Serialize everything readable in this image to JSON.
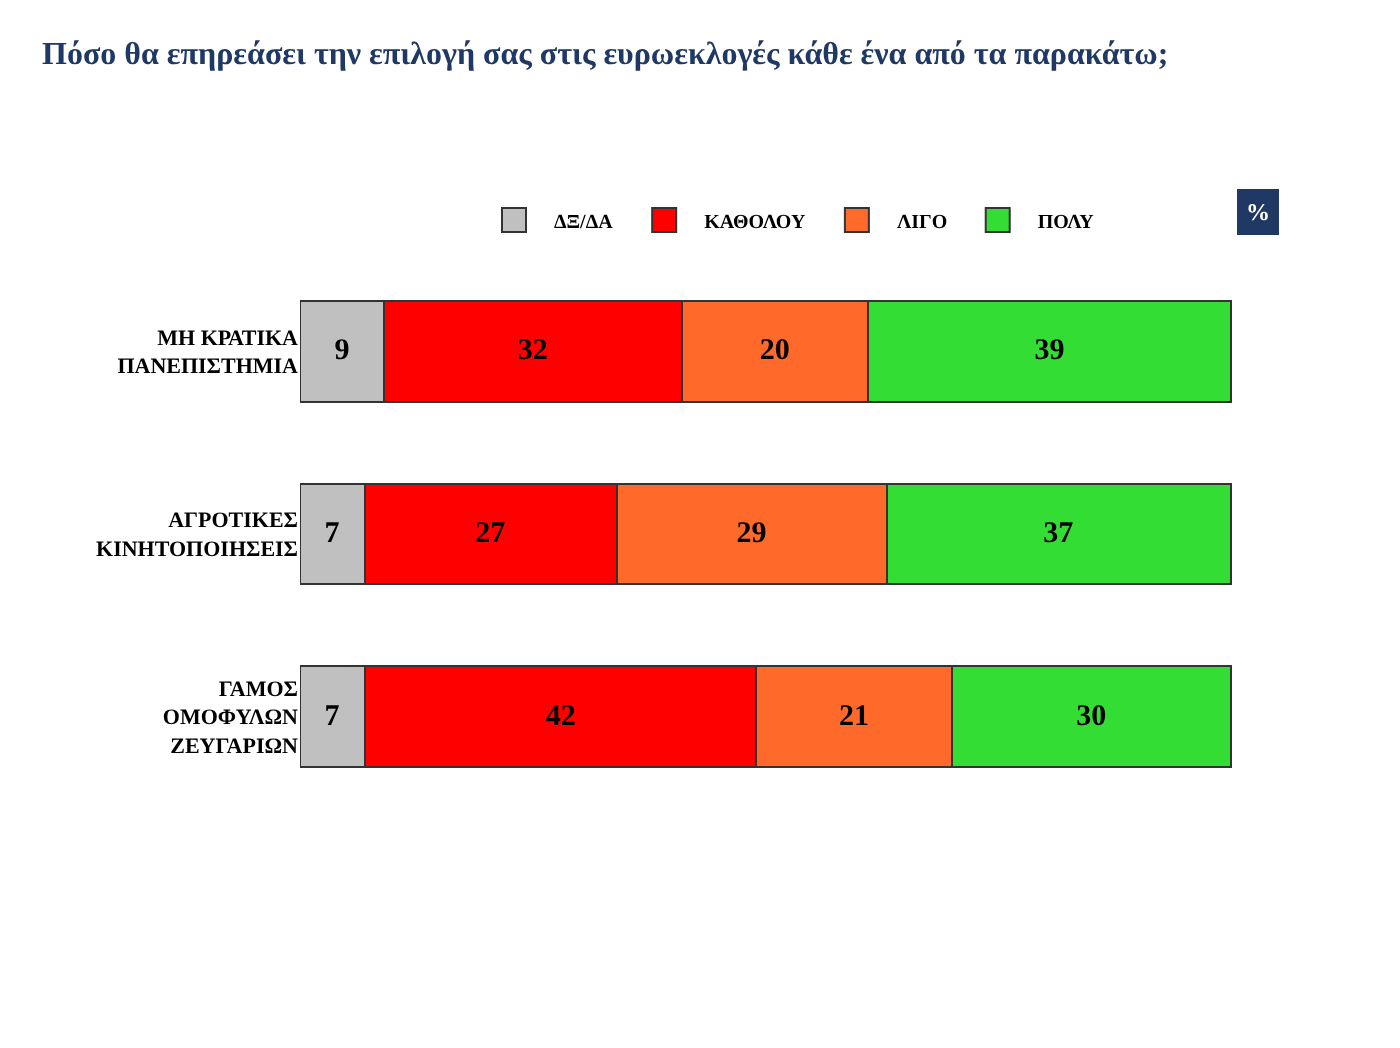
{
  "chart_data": {
    "type": "bar",
    "orientation": "horizontal",
    "stacked": true,
    "data_labels": true,
    "tick_labels": "y",
    "legend": "top",
    "title": "Πόσο θα επηρεάσει την επιλογή σας στις ευρωεκλογές κάθε ένα από τα παρακάτω;",
    "annotations": [
      "%"
    ],
    "categories": [
      "ΜΗ ΚΡΑΤΙΚΑ ΠΑΝΕΠΙΣΤΗΜΙΑ",
      "ΑΓΡΟΤΙΚΕΣ ΚΙΝΗΤΟΠΟΙΗΣΕΙΣ",
      "ΓΑΜΟΣ ΟΜΟΦΥΛΩΝ ΖΕΥΓΑΡΙΩΝ"
    ],
    "series": [
      {
        "name": "ΔΞ/ΔΑ",
        "color": "#c0c0c0",
        "values": [
          9,
          7,
          7
        ]
      },
      {
        "name": "ΚΑΘΟΛΟΥ",
        "color": "#ff0000",
        "values": [
          32,
          27,
          42
        ]
      },
      {
        "name": "ΛΙΓΟ",
        "color": "#ff6a2a",
        "values": [
          20,
          29,
          21
        ]
      },
      {
        "name": "ΠΟΛΥ",
        "color": "#33dd33",
        "values": [
          39,
          37,
          30
        ]
      }
    ]
  }
}
